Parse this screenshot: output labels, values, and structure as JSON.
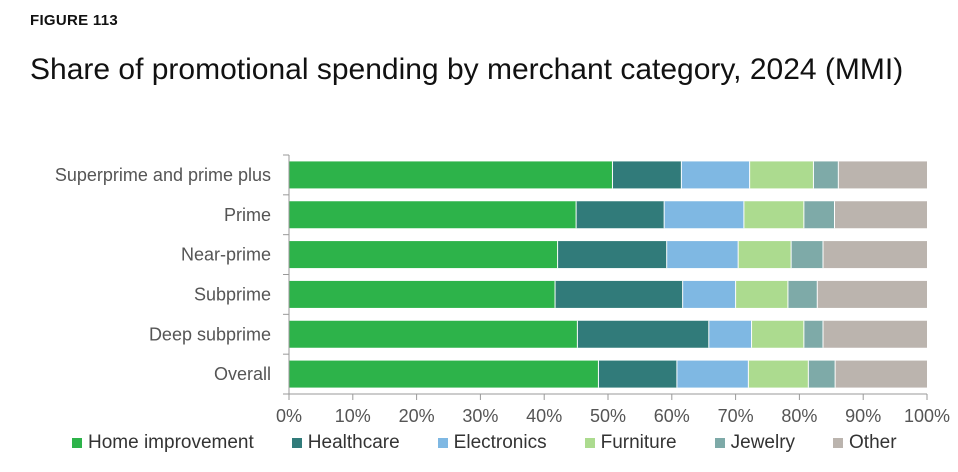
{
  "figure_label": "FIGURE 113",
  "title": "Share of promotional spending by merchant category, 2024 (MMI)",
  "chart_data": {
    "type": "bar",
    "orientation": "horizontal",
    "stacked": true,
    "categories": [
      "Superprime and prime plus",
      "Prime",
      "Near-prime",
      "Subprime",
      "Deep subprime",
      "Overall"
    ],
    "series": [
      {
        "name": "Home improvement",
        "color": "#2db34a",
        "values": [
          50.7,
          45.0,
          42.1,
          41.7,
          45.2,
          48.5
        ]
      },
      {
        "name": "Healthcare",
        "color": "#317b7a",
        "values": [
          10.8,
          13.8,
          17.1,
          20.0,
          20.6,
          12.3
        ]
      },
      {
        "name": "Electronics",
        "color": "#7fb8e3",
        "values": [
          10.7,
          12.5,
          11.2,
          8.3,
          6.7,
          11.2
        ]
      },
      {
        "name": "Furniture",
        "color": "#acdb8f",
        "values": [
          10.0,
          9.4,
          8.3,
          8.2,
          8.2,
          9.4
        ]
      },
      {
        "name": "Jewelry",
        "color": "#7eaaa8",
        "values": [
          3.9,
          4.8,
          5.0,
          4.6,
          3.0,
          4.2
        ]
      },
      {
        "name": "Other",
        "color": "#bbb4ae",
        "values": [
          13.9,
          14.5,
          16.3,
          17.2,
          16.3,
          14.4
        ]
      }
    ],
    "x_ticks": [
      "0%",
      "10%",
      "20%",
      "30%",
      "40%",
      "50%",
      "60%",
      "70%",
      "80%",
      "90%",
      "100%"
    ],
    "xlim": [
      0,
      100
    ],
    "xlabel": "",
    "ylabel": "",
    "grid": false,
    "legend_position": "bottom"
  }
}
